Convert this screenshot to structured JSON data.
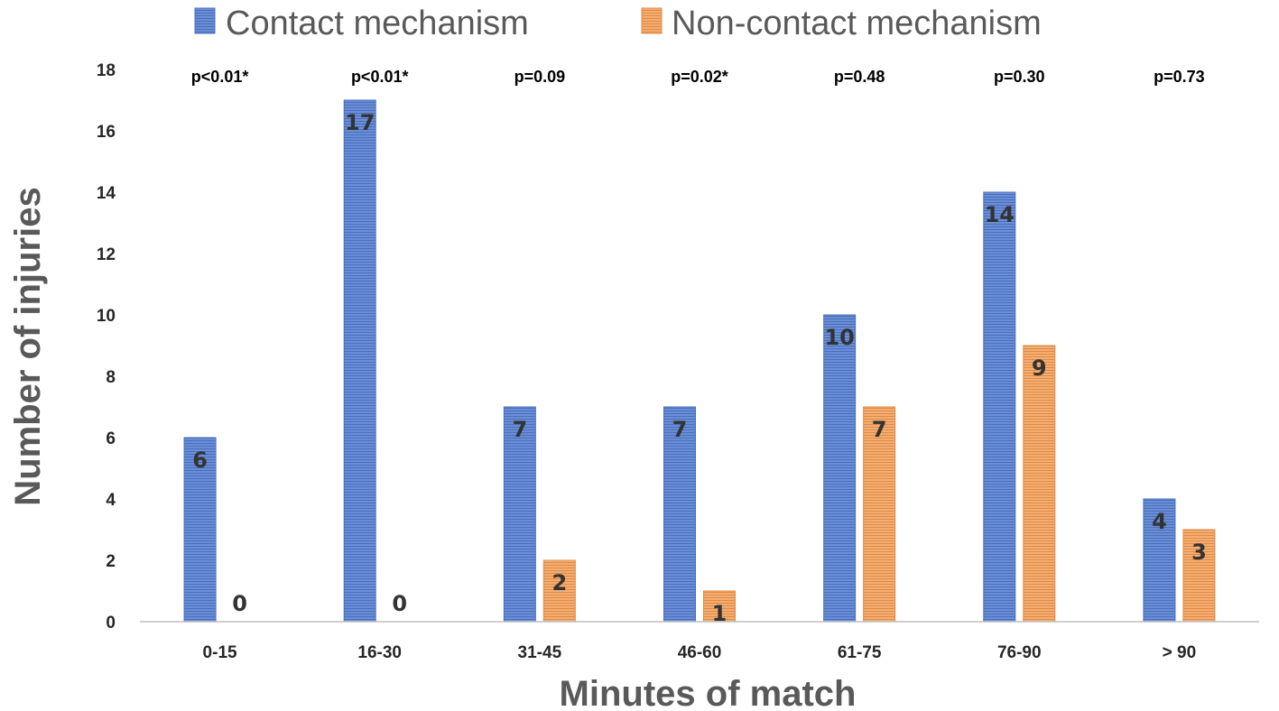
{
  "chart_data": {
    "type": "bar",
    "categories": [
      "0-15",
      "16-30",
      "31-45",
      "46-60",
      "61-75",
      "76-90",
      "> 90"
    ],
    "series": [
      {
        "name": "Contact mechanism",
        "values": [
          6,
          17,
          7,
          7,
          10,
          14,
          4
        ],
        "color": "#5b7fcb"
      },
      {
        "name": "Non-contact mechanism",
        "values": [
          0,
          0,
          2,
          1,
          7,
          9,
          3
        ],
        "color": "#f0a15c"
      }
    ],
    "annotations": [
      "p<0.01*",
      "p<0.01*",
      "p=0.09",
      "p=0.02*",
      "p=0.48",
      "p=0.30",
      "p=0.73"
    ],
    "title": "",
    "xlabel": "Minutes of match",
    "ylabel": "Number of injuries",
    "ylim": [
      0,
      18
    ],
    "yticks": [
      0,
      2,
      4,
      6,
      8,
      10,
      12,
      14,
      16,
      18
    ],
    "grid": false,
    "legend_position": "top"
  }
}
